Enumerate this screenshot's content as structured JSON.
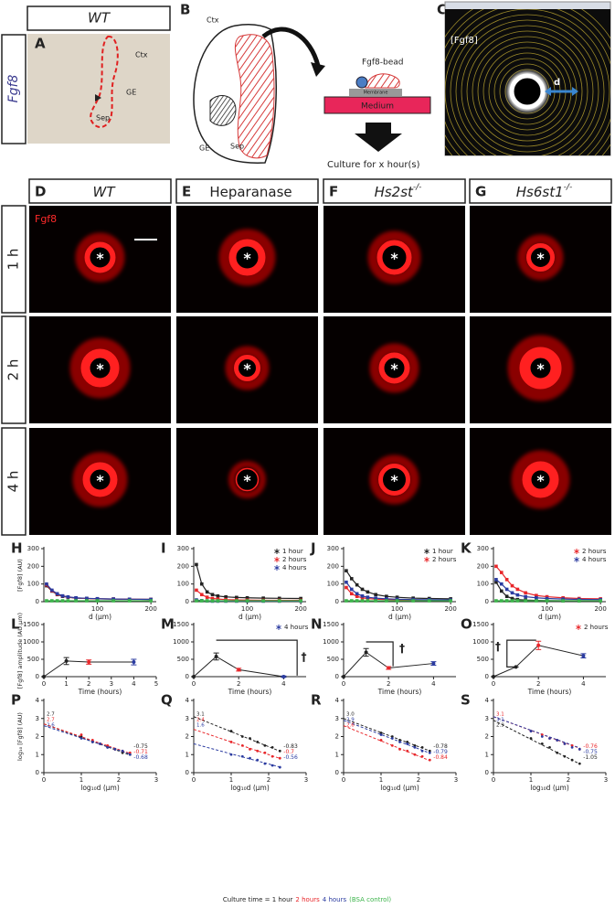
{
  "panel_a": {
    "letter": "A",
    "genotype": "WT",
    "gene": "Fgf8",
    "labels": [
      "Ctx",
      "GE",
      "Sep"
    ]
  },
  "panel_b": {
    "letter": "B",
    "labels": [
      "Ctx",
      "GE",
      "Sep"
    ],
    "bead": "Fgf8-bead",
    "membrane": "Membrane",
    "medium": "Medium",
    "caption": "Culture for x hour(s)"
  },
  "panel_c": {
    "letter": "C",
    "label": "[Fgf8]",
    "distance": "d"
  },
  "image_grid": {
    "columns": [
      {
        "letter": "D",
        "title": "WT"
      },
      {
        "letter": "E",
        "title": "Heparanase"
      },
      {
        "letter": "F",
        "title": "Hs2st",
        "title_sup": "-/-"
      },
      {
        "letter": "G",
        "title": "Hs6st1",
        "title_sup": "-/-"
      }
    ],
    "rows": [
      "1 h",
      "2 h",
      "4 h"
    ],
    "stain": "Fgf8",
    "bead_marker": "*"
  },
  "chart_data": [
    {
      "type": "line",
      "letter": "H",
      "ylabel": "[Fgf8] (AU)",
      "xlabel": "d (µm)",
      "xlim": [
        0,
        210
      ],
      "ylim": [
        0,
        300
      ],
      "xticks": [
        100,
        200
      ],
      "yticks": [
        0,
        100,
        200,
        300
      ],
      "x": [
        5,
        15,
        25,
        35,
        45,
        60,
        80,
        100,
        130,
        160,
        200
      ],
      "series": [
        {
          "color": "#222222",
          "values": [
            90,
            60,
            40,
            30,
            25,
            20,
            18,
            16,
            15,
            14,
            13
          ]
        },
        {
          "color": "#e8262a",
          "values": [
            95,
            62,
            42,
            32,
            26,
            21,
            18,
            16,
            15,
            14,
            13
          ]
        },
        {
          "color": "#2b3ba0",
          "values": [
            100,
            65,
            45,
            33,
            27,
            22,
            19,
            17,
            15,
            14,
            13
          ]
        },
        {
          "color": "#3cb44b",
          "values": [
            5,
            5,
            5,
            5,
            5,
            5,
            5,
            5,
            5,
            5,
            5
          ]
        }
      ]
    },
    {
      "type": "line",
      "letter": "I",
      "xlabel": "d (µm)",
      "xlim": [
        0,
        210
      ],
      "ylim": [
        0,
        300
      ],
      "xticks": [
        100,
        200
      ],
      "yticks": [
        0,
        100,
        200,
        300
      ],
      "legend": "upper right",
      "x": [
        5,
        15,
        25,
        35,
        45,
        60,
        80,
        100,
        130,
        160,
        200
      ],
      "series": [
        {
          "name": "1 hour",
          "color": "#222222",
          "values": [
            210,
            100,
            55,
            40,
            32,
            27,
            24,
            22,
            20,
            19,
            18
          ]
        },
        {
          "name": "2 hours",
          "color": "#e8262a",
          "values": [
            65,
            40,
            25,
            18,
            15,
            12,
            10,
            9,
            8,
            8,
            8
          ]
        },
        {
          "name": "4 hours",
          "color": "#2b3ba0",
          "values": [
            10,
            6,
            4,
            3,
            3,
            3,
            3,
            3,
            3,
            3,
            3
          ]
        },
        {
          "color": "#3cb44b",
          "values": [
            5,
            5,
            5,
            5,
            5,
            5,
            5,
            5,
            5,
            5,
            5
          ]
        }
      ]
    },
    {
      "type": "line",
      "letter": "J",
      "xlabel": "d (µm)",
      "xlim": [
        0,
        210
      ],
      "ylim": [
        0,
        300
      ],
      "xticks": [
        100,
        200
      ],
      "yticks": [
        0,
        100,
        200,
        300
      ],
      "legend": "upper right",
      "x": [
        5,
        15,
        25,
        35,
        45,
        60,
        80,
        100,
        130,
        160,
        200
      ],
      "series": [
        {
          "name": "1 hour",
          "color": "#222222",
          "values": [
            175,
            130,
            95,
            70,
            55,
            40,
            30,
            25,
            20,
            18,
            16
          ]
        },
        {
          "name": "2 hours",
          "color": "#e8262a",
          "values": [
            80,
            45,
            30,
            22,
            18,
            14,
            12,
            11,
            10,
            9,
            9
          ]
        },
        {
          "color": "#2b3ba0",
          "values": [
            110,
            70,
            45,
            32,
            25,
            20,
            16,
            14,
            12,
            11,
            10
          ]
        },
        {
          "color": "#3cb44b",
          "values": [
            5,
            5,
            5,
            5,
            5,
            5,
            5,
            5,
            5,
            5,
            5
          ]
        }
      ]
    },
    {
      "type": "line",
      "letter": "K",
      "xlabel": "d (µm)",
      "xlim": [
        0,
        210
      ],
      "ylim": [
        0,
        300
      ],
      "xticks": [
        100,
        200
      ],
      "yticks": [
        0,
        100,
        200,
        300
      ],
      "legend": "upper right",
      "x": [
        5,
        15,
        25,
        35,
        45,
        60,
        80,
        100,
        130,
        160,
        200
      ],
      "series": [
        {
          "color": "#222222",
          "values": [
            110,
            60,
            30,
            18,
            12,
            9,
            7,
            6,
            5,
            5,
            5
          ]
        },
        {
          "name": "2 hours",
          "color": "#e8262a",
          "values": [
            200,
            165,
            125,
            90,
            70,
            50,
            35,
            28,
            22,
            18,
            16
          ]
        },
        {
          "name": "4 hours",
          "color": "#2b3ba0",
          "values": [
            125,
            100,
            70,
            50,
            38,
            28,
            22,
            18,
            15,
            13,
            12
          ]
        },
        {
          "color": "#3cb44b",
          "values": [
            5,
            5,
            5,
            5,
            5,
            5,
            5,
            5,
            5,
            5,
            5
          ]
        }
      ]
    },
    {
      "type": "timecourse",
      "letter": "L",
      "ylabel": "[Fgf8] amplitude (AU.µm)",
      "xlabel": "Time (hours)",
      "xlim": [
        0,
        5
      ],
      "ylim": [
        0,
        1500
      ],
      "xticks": [
        0,
        1,
        2,
        3,
        4,
        5
      ],
      "yticks": [
        0,
        500,
        1000,
        1500
      ],
      "x": [
        0,
        1,
        2,
        4
      ],
      "values": [
        0,
        450,
        420,
        420
      ],
      "errors": [
        0,
        100,
        60,
        80
      ],
      "point_colors": [
        "#222222",
        "#222222",
        "#e8262a",
        "#2b3ba0"
      ]
    },
    {
      "type": "timecourse",
      "letter": "M",
      "xlabel": "Time (hours)",
      "xlim": [
        0,
        5
      ],
      "ylim": [
        0,
        1500
      ],
      "xticks": [
        0,
        2,
        4
      ],
      "yticks": [
        0,
        500,
        1000,
        1500
      ],
      "annotation": "†",
      "legend": [
        {
          "name": "4 hours",
          "color": "#2b3ba0"
        }
      ],
      "x": [
        0,
        1,
        2,
        4
      ],
      "values": [
        0,
        580,
        200,
        0
      ],
      "errors": [
        0,
        100,
        40,
        20
      ],
      "point_colors": [
        "#222222",
        "#222222",
        "#e8262a",
        "#2b3ba0"
      ]
    },
    {
      "type": "timecourse",
      "letter": "N",
      "xlabel": "Time (hours)",
      "xlim": [
        0,
        5
      ],
      "ylim": [
        0,
        1500
      ],
      "xticks": [
        0,
        2,
        4
      ],
      "yticks": [
        0,
        500,
        1000,
        1500
      ],
      "annotation": "†",
      "x": [
        0,
        1,
        2,
        4
      ],
      "values": [
        0,
        700,
        250,
        380
      ],
      "errors": [
        0,
        110,
        40,
        50
      ],
      "point_colors": [
        "#222222",
        "#222222",
        "#e8262a",
        "#2b3ba0"
      ]
    },
    {
      "type": "timecourse",
      "letter": "O",
      "xlabel": "Time (hours)",
      "xlim": [
        0,
        5
      ],
      "ylim": [
        0,
        1500
      ],
      "xticks": [
        0,
        2,
        4
      ],
      "yticks": [
        0,
        500,
        1000,
        1500
      ],
      "annotation": "†",
      "legend": [
        {
          "name": "2 hours",
          "color": "#e8262a"
        }
      ],
      "x": [
        0,
        1,
        2,
        4
      ],
      "values": [
        0,
        280,
        900,
        600
      ],
      "errors": [
        0,
        0,
        120,
        60
      ],
      "point_colors": [
        "#222222",
        "#222222",
        "#e8262a",
        "#2b3ba0"
      ]
    },
    {
      "type": "scatter",
      "letter": "P",
      "ylabel": "log₁₀ [Fgf8] (AU)",
      "xlabel": "log₁₀d (µm)",
      "xlim": [
        0,
        3
      ],
      "ylim": [
        0,
        4
      ],
      "xticks": [
        0,
        1,
        2,
        3
      ],
      "yticks": [
        0,
        1,
        2,
        3,
        4
      ],
      "x": [
        1.0,
        1.3,
        1.5,
        1.7,
        1.9,
        2.1,
        2.3
      ],
      "series": [
        {
          "color": "#222222",
          "values": [
            2.0,
            1.7,
            1.6,
            1.4,
            1.3,
            1.1,
            1.0
          ]
        },
        {
          "color": "#e8262a",
          "values": [
            2.1,
            1.8,
            1.6,
            1.5,
            1.3,
            1.2,
            1.1
          ]
        },
        {
          "color": "#2b3ba0",
          "values": [
            1.9,
            1.7,
            1.6,
            1.4,
            1.3,
            1.2,
            1.0
          ]
        }
      ],
      "fits": [
        {
          "color": "#222222",
          "intercept": 2.7,
          "slope": -0.75
        },
        {
          "color": "#e8262a",
          "intercept": 2.7,
          "slope": -0.71
        },
        {
          "color": "#2b3ba0",
          "intercept": 2.6,
          "slope": -0.68
        }
      ]
    },
    {
      "type": "scatter",
      "letter": "Q",
      "xlabel": "log₁₀d (µm)",
      "xlim": [
        0,
        3
      ],
      "ylim": [
        0,
        4
      ],
      "xticks": [
        0,
        1,
        2,
        3
      ],
      "yticks": [
        0,
        1,
        2,
        3,
        4
      ],
      "x": [
        1.0,
        1.3,
        1.5,
        1.7,
        1.9,
        2.1,
        2.3
      ],
      "series": [
        {
          "color": "#222222",
          "values": [
            2.3,
            2.0,
            1.9,
            1.7,
            1.5,
            1.4,
            1.2
          ]
        },
        {
          "color": "#e8262a",
          "values": [
            1.7,
            1.5,
            1.3,
            1.2,
            1.1,
            0.9,
            0.8
          ]
        },
        {
          "color": "#2b3ba0",
          "values": [
            1.0,
            0.9,
            0.8,
            0.7,
            0.5,
            0.4,
            0.3
          ]
        }
      ],
      "fits": [
        {
          "color": "#222222",
          "intercept": 3.1,
          "slope": -0.83
        },
        {
          "color": "#e8262a",
          "intercept": 2.4,
          "slope": -0.7
        },
        {
          "color": "#2b3ba0",
          "intercept": 1.6,
          "slope": -0.56
        }
      ]
    },
    {
      "type": "scatter",
      "letter": "R",
      "xlabel": "log₁₀d (µm)",
      "xlim": [
        0,
        3
      ],
      "ylim": [
        0,
        4
      ],
      "xticks": [
        0,
        1,
        2,
        3
      ],
      "yticks": [
        0,
        1,
        2,
        3,
        4
      ],
      "x": [
        1.0,
        1.3,
        1.5,
        1.7,
        1.9,
        2.1,
        2.3
      ],
      "series": [
        {
          "color": "#222222",
          "values": [
            2.2,
            2.0,
            1.8,
            1.7,
            1.5,
            1.4,
            1.2
          ]
        },
        {
          "color": "#2b3ba0",
          "values": [
            2.1,
            1.9,
            1.7,
            1.6,
            1.4,
            1.2,
            1.1
          ]
        },
        {
          "color": "#e8262a",
          "values": [
            1.8,
            1.5,
            1.3,
            1.2,
            1.0,
            0.9,
            0.7
          ]
        }
      ],
      "fits": [
        {
          "color": "#222222",
          "intercept": {
            "value": 3,
            "label": "3.0"
          },
          "slope": -0.78
        },
        {
          "color": "#2b3ba0",
          "intercept": 2.9,
          "slope": -0.79
        },
        {
          "color": "#e8262a",
          "intercept": 2.6,
          "slope": -0.84
        }
      ]
    },
    {
      "type": "scatter",
      "letter": "S",
      "xlabel": "log₁₀d (µm)",
      "xlim": [
        0,
        3
      ],
      "ylim": [
        0,
        4
      ],
      "xticks": [
        0,
        1,
        2,
        3
      ],
      "yticks": [
        0,
        1,
        2,
        3,
        4
      ],
      "x": [
        1.0,
        1.3,
        1.5,
        1.7,
        1.9,
        2.1,
        2.3
      ],
      "series": [
        {
          "color": "#e8262a",
          "values": [
            2.3,
            2.1,
            1.9,
            1.8,
            1.6,
            1.5,
            1.3
          ]
        },
        {
          "color": "#2b3ba0",
          "values": [
            2.3,
            2.0,
            1.9,
            1.8,
            1.6,
            1.4,
            1.3
          ]
        },
        {
          "color": "#222222",
          "values": [
            1.9,
            1.6,
            1.4,
            1.1,
            0.9,
            0.7,
            0.5
          ]
        }
      ],
      "fits": [
        {
          "color": "#e8262a",
          "intercept": 3.1,
          "slope": -0.76
        },
        {
          "color": "#2b3ba0",
          "intercept": 3.1,
          "slope": -0.75
        },
        {
          "color": "#222222",
          "intercept": 2.9,
          "slope": -1.05
        }
      ]
    }
  ],
  "footer": [
    {
      "text": "Culture time = 1 hour",
      "color": "#222222"
    },
    {
      "text": "2 hours",
      "color": "#e8262a"
    },
    {
      "text": "4 hours",
      "color": "#2b3ba0"
    },
    {
      "text": "(BSA control)",
      "color": "#3cb44b"
    }
  ]
}
